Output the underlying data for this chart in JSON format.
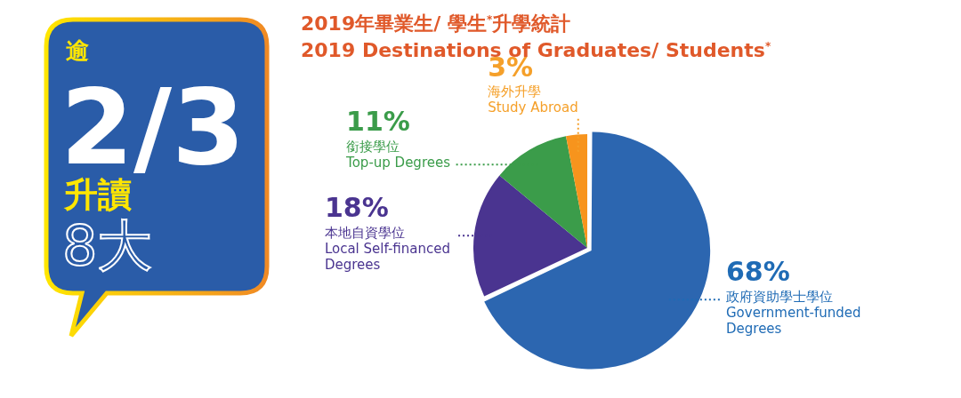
{
  "chart_data": {
    "type": "pie",
    "title": "2019年畢業生/ 學生$^{*}$升學統計",
    "subtitle": "2019 Destinations of Graduates/ Students$^{*}$",
    "categories": [
      "政府資助學士學位\nGovernment-funded\nDegrees",
      "本地自資學位\nLocal Self-financed\nDegrees",
      "銜接學位\nTop-up Degrees",
      "海外升學\nStudy Abroad"
    ],
    "values": [
      68,
      18,
      11,
      3
    ],
    "value_labels": [
      "68%",
      "18%",
      "11%",
      "3%"
    ],
    "colors": [
      "#2c66b0",
      "#4a3490",
      "#3b9c4a",
      "#f7941d"
    ],
    "legend": false,
    "annotations": [
      "逾",
      "2/3",
      "升讀",
      "8大"
    ]
  }
}
